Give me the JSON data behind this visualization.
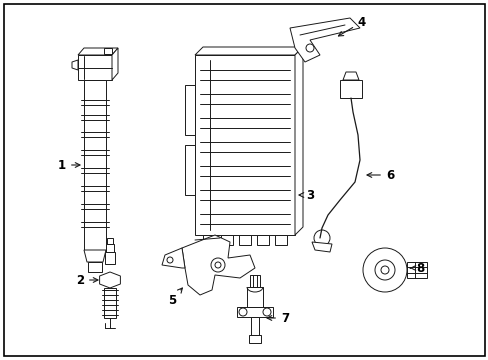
{
  "background_color": "#ffffff",
  "border_color": "#000000",
  "line_color": "#1a1a1a",
  "fig_width": 4.89,
  "fig_height": 3.6,
  "dpi": 100,
  "label_fontsize": 8.5,
  "lw": 0.7
}
